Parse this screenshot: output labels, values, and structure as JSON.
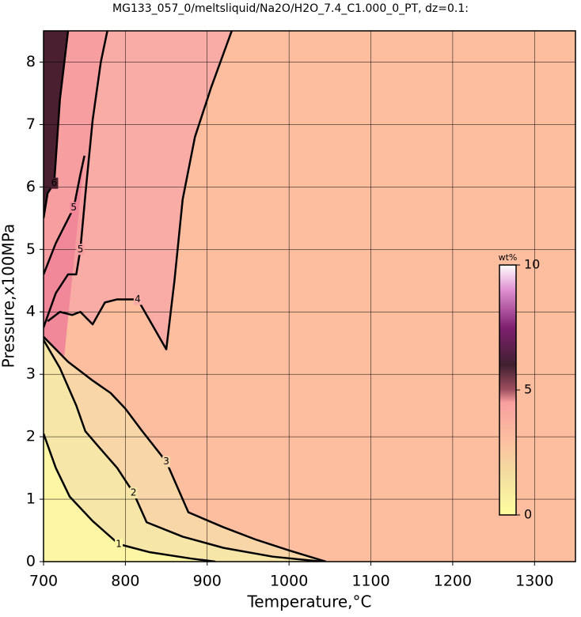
{
  "chart_data": {
    "type": "contour",
    "title": "MG133_057_0/meltsliquid/Na2O/H2O_7.4_C1.000_0_PT, dz=0.1:",
    "x_label": "Temperature,°C",
    "y_label": "Pressure,x100MPa",
    "xlim": [
      700,
      1350
    ],
    "ylim": [
      0,
      8.5
    ],
    "xticks": [
      700,
      800,
      900,
      1000,
      1100,
      1200,
      1300
    ],
    "yticks": [
      0,
      1,
      2,
      3,
      4,
      5,
      6,
      7,
      8
    ],
    "grid": true,
    "background": "#fdbea0",
    "contours": [
      {
        "level": 4,
        "fill": "#f9aca6",
        "x": [
          705,
          720,
          735,
          745,
          760,
          775,
          790,
          815,
          850,
          860,
          870,
          885,
          905,
          930
        ],
        "y": [
          3.85,
          4.0,
          3.95,
          4.0,
          3.8,
          4.15,
          4.2,
          4.2,
          3.4,
          4.5,
          5.8,
          6.8,
          7.6,
          8.5
        ]
      },
      {
        "level": 5,
        "fill": "#f79ea0",
        "x": [
          700,
          715,
          730,
          740,
          745,
          752,
          760,
          770,
          778
        ],
        "y": [
          3.75,
          4.3,
          4.6,
          4.6,
          5.0,
          6.0,
          7.07,
          8.0,
          8.5
        ]
      },
      {
        "level": 5,
        "fill": "#f0889a",
        "x": [
          700,
          715,
          737,
          745,
          750
        ],
        "y": [
          4.6,
          5.1,
          5.67,
          6.2,
          6.5
        ]
      },
      {
        "level": 6,
        "fill": "#4a2030",
        "x": [
          700,
          705,
          713,
          720,
          730
        ],
        "y": [
          5.5,
          5.9,
          6.06,
          7.4,
          8.5
        ]
      },
      {
        "level": 3,
        "fill": "#f8d6a8",
        "x": [
          700,
          730,
          760,
          782,
          800,
          820,
          850,
          877,
          920,
          960,
          1000,
          1045
        ],
        "y": [
          3.6,
          3.2,
          2.9,
          2.7,
          2.45,
          2.1,
          1.6,
          0.79,
          0.55,
          0.35,
          0.18,
          0
        ]
      },
      {
        "level": 2,
        "fill": "#f6e6a8",
        "x": [
          700,
          720,
          740,
          751,
          770,
          790,
          810,
          826,
          870,
          920,
          980,
          1040
        ],
        "y": [
          3.55,
          3.1,
          2.5,
          2.09,
          1.8,
          1.5,
          1.1,
          0.63,
          0.4,
          0.22,
          0.08,
          0
        ]
      },
      {
        "level": 1,
        "fill": "#fdf6a4",
        "x": [
          700,
          715,
          732,
          760,
          792,
          830,
          880,
          910
        ],
        "y": [
          2.05,
          1.5,
          1.04,
          0.65,
          0.28,
          0.15,
          0.05,
          0
        ]
      }
    ],
    "colorbar": {
      "label": "wt%",
      "lim": [
        0,
        10
      ],
      "ticks": [
        0,
        5,
        10
      ],
      "stops": [
        [
          0,
          "#ffffa0"
        ],
        [
          1.5,
          "#f3e0a0"
        ],
        [
          3,
          "#fcbfa0"
        ],
        [
          4.5,
          "#f8a0a0"
        ],
        [
          5,
          "#a05060"
        ],
        [
          6,
          "#402030"
        ],
        [
          7.5,
          "#802070"
        ],
        [
          9,
          "#e090d0"
        ],
        [
          10,
          "#ffffff"
        ]
      ]
    }
  }
}
